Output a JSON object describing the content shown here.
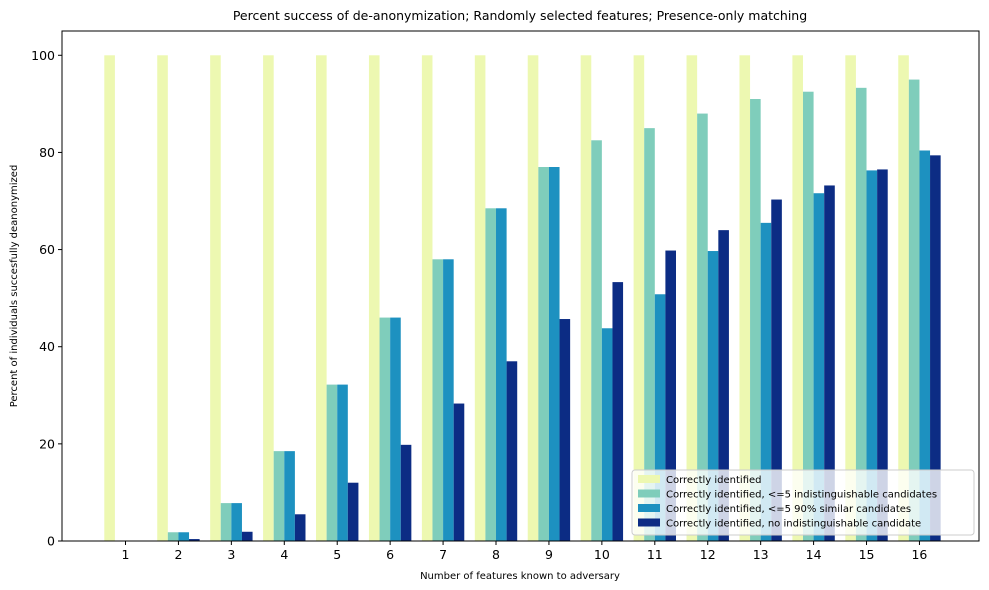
{
  "chart_data": {
    "type": "bar",
    "title": "Percent success of de-anonymization; Randomly selected features; Presence-only matching",
    "xlabel": "Number of features known to adversary",
    "ylabel": "Percent of individuals succesfully deanonymized",
    "ylim": [
      0,
      105
    ],
    "yticks": [
      0,
      20,
      40,
      60,
      80,
      100
    ],
    "categories": [
      "1",
      "2",
      "3",
      "4",
      "5",
      "6",
      "7",
      "8",
      "9",
      "10",
      "11",
      "12",
      "13",
      "14",
      "15",
      "16"
    ],
    "series": [
      {
        "name": "Correctly identified",
        "color": "#edf8b1",
        "values": [
          100,
          100,
          100,
          100,
          100,
          100,
          100,
          100,
          100,
          100,
          100,
          100,
          100,
          100,
          100,
          100
        ]
      },
      {
        "name": "Correctly identified, <=5 indistinguishable candidates",
        "color": "#7fcdbb",
        "values": [
          0.1,
          1.8,
          7.8,
          18.5,
          32.2,
          46.0,
          58.0,
          68.5,
          77.0,
          82.5,
          85.0,
          88.0,
          91.0,
          92.5,
          93.3,
          95.0
        ]
      },
      {
        "name": "Correctly identified, <=5 90% similar candidates",
        "color": "#1d91c0",
        "values": [
          0.1,
          1.8,
          7.8,
          18.5,
          32.2,
          46.0,
          58.0,
          68.5,
          77.0,
          43.8,
          50.8,
          59.7,
          65.5,
          71.6,
          76.3,
          80.4
        ]
      },
      {
        "name": "Correctly identified, no indistinguishable candidate",
        "color": "#0c2c84",
        "values": [
          0.0,
          0.4,
          1.9,
          5.5,
          12.0,
          19.8,
          28.3,
          37.0,
          45.7,
          53.3,
          59.8,
          64.0,
          70.3,
          73.2,
          76.5,
          79.4
        ]
      }
    ],
    "grid": false,
    "legend_position": "lower right"
  }
}
